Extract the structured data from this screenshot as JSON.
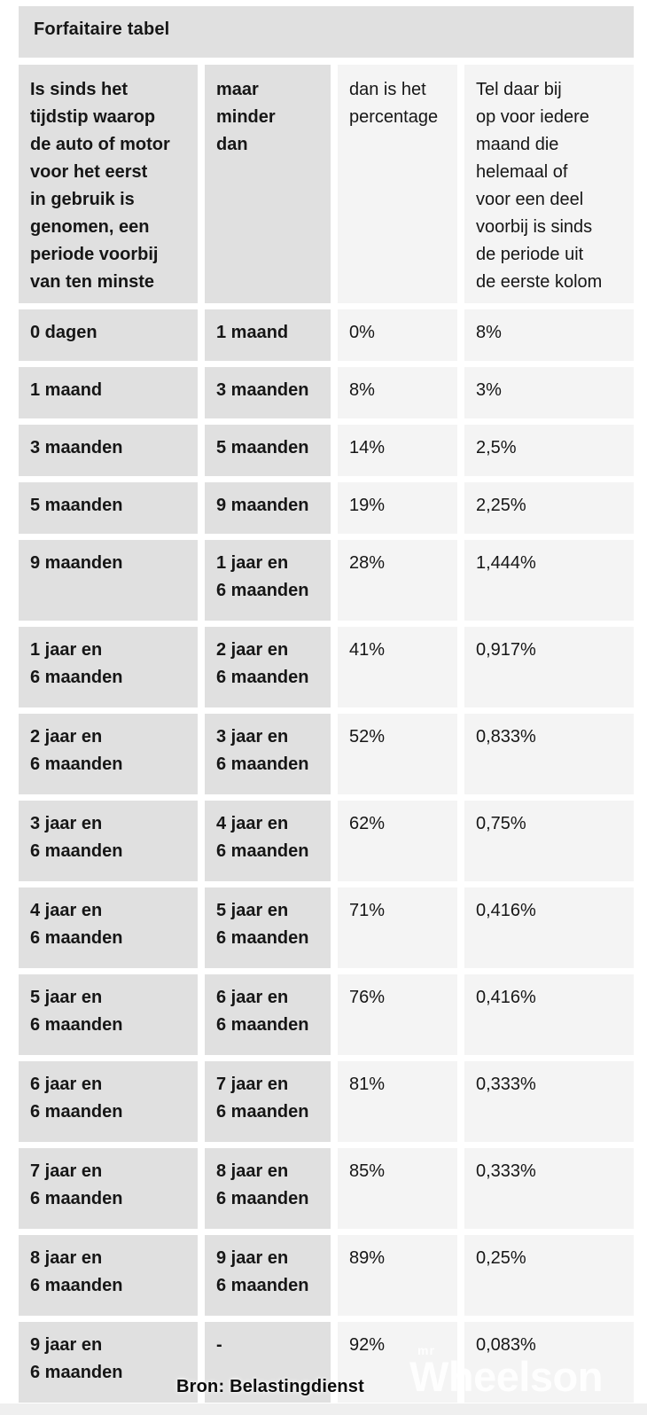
{
  "title": "Forfaitaire tabel",
  "source_note": "Bron: Belastingdienst",
  "watermark": {
    "prefix": "mr",
    "name": "Wheelson"
  },
  "colors": {
    "cell_dark": "#e0e0e0",
    "cell_light": "#f4f4f4",
    "bottom_strip": "#efefef",
    "text": "#161616",
    "watermark_white": "#ffffff"
  },
  "table": {
    "headers": [
      "Is sinds het\ntijdstip waarop\nde auto of motor\nvoor het eerst\nin gebruik is\ngenomen, een\nperiode voorbij\nvan ten minste",
      "maar\nminder\ndan",
      "dan is het\npercentage",
      "Tel daar bij\nop voor iedere\nmaand die\nhelemaal of\nvoor een deel\nvoorbij is sinds\nde periode uit\nde eerste kolom"
    ],
    "rows": [
      [
        "0 dagen",
        "1 maand",
        "0%",
        "8%"
      ],
      [
        "1 maand",
        "3 maanden",
        "8%",
        "3%"
      ],
      [
        "3 maanden",
        "5 maanden",
        "14%",
        "2,5%"
      ],
      [
        "5 maanden",
        "9 maanden",
        "19%",
        "2,25%"
      ],
      [
        "9 maanden",
        "1 jaar en\n6 maanden",
        "28%",
        "1,444%"
      ],
      [
        "1 jaar en\n6 maanden",
        "2 jaar en\n6 maanden",
        "41%",
        "0,917%"
      ],
      [
        "2 jaar en\n6 maanden",
        "3 jaar en\n6 maanden",
        "52%",
        "0,833%"
      ],
      [
        "3 jaar en\n6 maanden",
        "4 jaar en\n6 maanden",
        "62%",
        "0,75%"
      ],
      [
        "4 jaar en\n6 maanden",
        "5 jaar en\n6 maanden",
        "71%",
        "0,416%"
      ],
      [
        "5 jaar en\n6 maanden",
        "6 jaar en\n6 maanden",
        "76%",
        "0,416%"
      ],
      [
        "6 jaar en\n6 maanden",
        "7 jaar en\n6 maanden",
        "81%",
        "0,333%"
      ],
      [
        "7 jaar en\n6 maanden",
        "8 jaar en\n6 maanden",
        "85%",
        "0,333%"
      ],
      [
        "8 jaar en\n6 maanden",
        "9 jaar en\n6 maanden",
        "89%",
        "0,25%"
      ],
      [
        "9 jaar en\n6 maanden",
        "-",
        "92%",
        "0,083%"
      ]
    ]
  },
  "chart_data": {
    "type": "table",
    "title": "Forfaitaire tabel",
    "columns": [
      "Is sinds het tijdstip waarop de auto of motor voor het eerst in gebruik is genomen, een periode voorbij van ten minste",
      "maar minder dan",
      "dan is het percentage",
      "Tel daar bij op voor iedere maand die helemaal of voor een deel voorbij is sinds de periode uit de eerste kolom"
    ],
    "rows": [
      [
        "0 dagen",
        "1 maand",
        "0%",
        "8%"
      ],
      [
        "1 maand",
        "3 maanden",
        "8%",
        "3%"
      ],
      [
        "3 maanden",
        "5 maanden",
        "14%",
        "2,5%"
      ],
      [
        "5 maanden",
        "9 maanden",
        "19%",
        "2,25%"
      ],
      [
        "9 maanden",
        "1 jaar en 6 maanden",
        "28%",
        "1,444%"
      ],
      [
        "1 jaar en 6 maanden",
        "2 jaar en 6 maanden",
        "41%",
        "0,917%"
      ],
      [
        "2 jaar en 6 maanden",
        "3 jaar en 6 maanden",
        "52%",
        "0,833%"
      ],
      [
        "3 jaar en 6 maanden",
        "4 jaar en 6 maanden",
        "62%",
        "0,75%"
      ],
      [
        "4 jaar en 6 maanden",
        "5 jaar en 6 maanden",
        "71%",
        "0,416%"
      ],
      [
        "5 jaar en 6 maanden",
        "6 jaar en 6 maanden",
        "76%",
        "0,416%"
      ],
      [
        "6 jaar en 6 maanden",
        "7 jaar en 6 maanden",
        "81%",
        "0,333%"
      ],
      [
        "7 jaar en 6 maanden",
        "8 jaar en 6 maanden",
        "85%",
        "0,333%"
      ],
      [
        "8 jaar en 6 maanden",
        "9 jaar en 6 maanden",
        "89%",
        "0,25%"
      ],
      [
        "9 jaar en 6 maanden",
        "-",
        "92%",
        "0,083%"
      ]
    ],
    "source": "Bron: Belastingdienst"
  }
}
